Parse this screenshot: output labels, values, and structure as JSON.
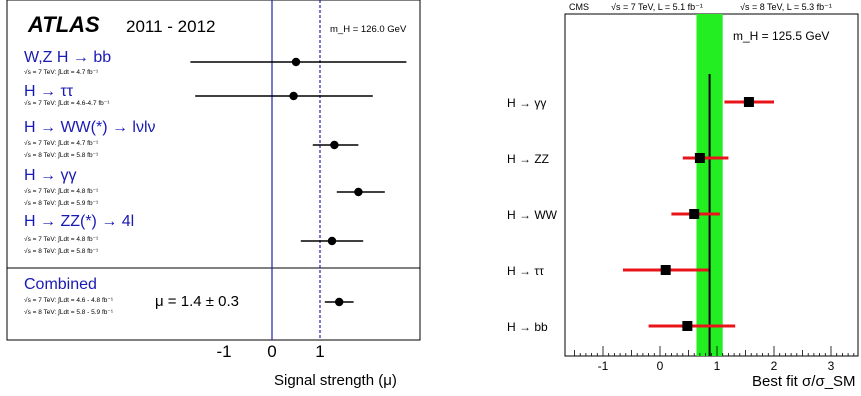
{
  "chart_data": [
    {
      "type": "scatter",
      "panel": "atlas",
      "logo": "ATLAS",
      "years": "2011 - 2012",
      "mass_label": "m_H = 126.0 GeV",
      "xlabel": "Signal strength (μ)",
      "xlim": [
        -2.5,
        3.0
      ],
      "xticks": [
        "-1",
        "0",
        "1"
      ],
      "reference_lines": {
        "solid_at": 0,
        "dashed_at": 1
      },
      "channels": [
        {
          "label": "W,Z H → bb",
          "lumi": [
            "√s = 7 TeV: ∫Ldt = 4.7 fb⁻¹"
          ],
          "mu": 0.5,
          "lo": -1.7,
          "hi": 2.8
        },
        {
          "label": "H → ττ",
          "lumi": [
            "√s = 7 TeV: ∫Ldt = 4.6-4.7 fb⁻¹"
          ],
          "mu": 0.45,
          "lo": -1.6,
          "hi": 2.1
        },
        {
          "label": "H → WW(*) → lνlν",
          "lumi": [
            "√s = 7 TeV: ∫Ldt = 4.7 fb⁻¹",
            "√s = 8 TeV: ∫Ldt = 5.8 fb⁻¹"
          ],
          "mu": 1.3,
          "lo": 0.85,
          "hi": 1.8
        },
        {
          "label": "H → γγ",
          "lumi": [
            "√s = 7 TeV: ∫Ldt = 4.8 fb⁻¹",
            "√s = 8 TeV: ∫Ldt = 5.9 fb⁻¹"
          ],
          "mu": 1.8,
          "lo": 1.35,
          "hi": 2.35
        },
        {
          "label": "H → ZZ(*) → 4l",
          "lumi": [
            "√s = 7 TeV: ∫Ldt = 4.8 fb⁻¹",
            "√s = 8 TeV: ∫Ldt = 5.8 fb⁻¹"
          ],
          "mu": 1.25,
          "lo": 0.6,
          "hi": 1.9
        }
      ],
      "combined": {
        "label": "Combined",
        "lumi": [
          "√s = 7 TeV: ∫Ldt = 4.6 - 4.8 fb⁻¹",
          "√s = 8 TeV: ∫Ldt = 5.8 - 5.9 fb⁻¹"
        ],
        "mu_text": "μ = 1.4 ± 0.3",
        "mu": 1.4,
        "lo": 1.1,
        "hi": 1.7
      }
    },
    {
      "type": "scatter",
      "panel": "cms",
      "header": [
        "CMS",
        "√s = 7 TeV, L = 5.1 fb⁻¹",
        "√s = 8 TeV, L = 5.3 fb⁻¹"
      ],
      "mass_label": "m_H = 125.5 GeV",
      "xlabel": "Best fit σ/σ_SM",
      "xlim": [
        -1.7,
        3.5
      ],
      "xticks": [
        -1,
        0,
        1,
        2,
        3
      ],
      "band": {
        "center": 0.87,
        "lo": 0.64,
        "hi": 1.1,
        "color": "#22ee22"
      },
      "channels": [
        {
          "label": "H → γγ",
          "mu": 1.56,
          "lo": 1.13,
          "hi": 2.0
        },
        {
          "label": "H → ZZ",
          "mu": 0.7,
          "lo": 0.4,
          "hi": 1.2
        },
        {
          "label": "H → WW",
          "mu": 0.6,
          "lo": 0.2,
          "hi": 1.05
        },
        {
          "label": "H → ττ",
          "mu": 0.1,
          "lo": -0.65,
          "hi": 0.85
        },
        {
          "label": "H → bb",
          "mu": 0.48,
          "lo": -0.2,
          "hi": 1.32
        }
      ],
      "colors": {
        "error_bar": "#e8141a",
        "central_line": "#000000"
      }
    }
  ]
}
